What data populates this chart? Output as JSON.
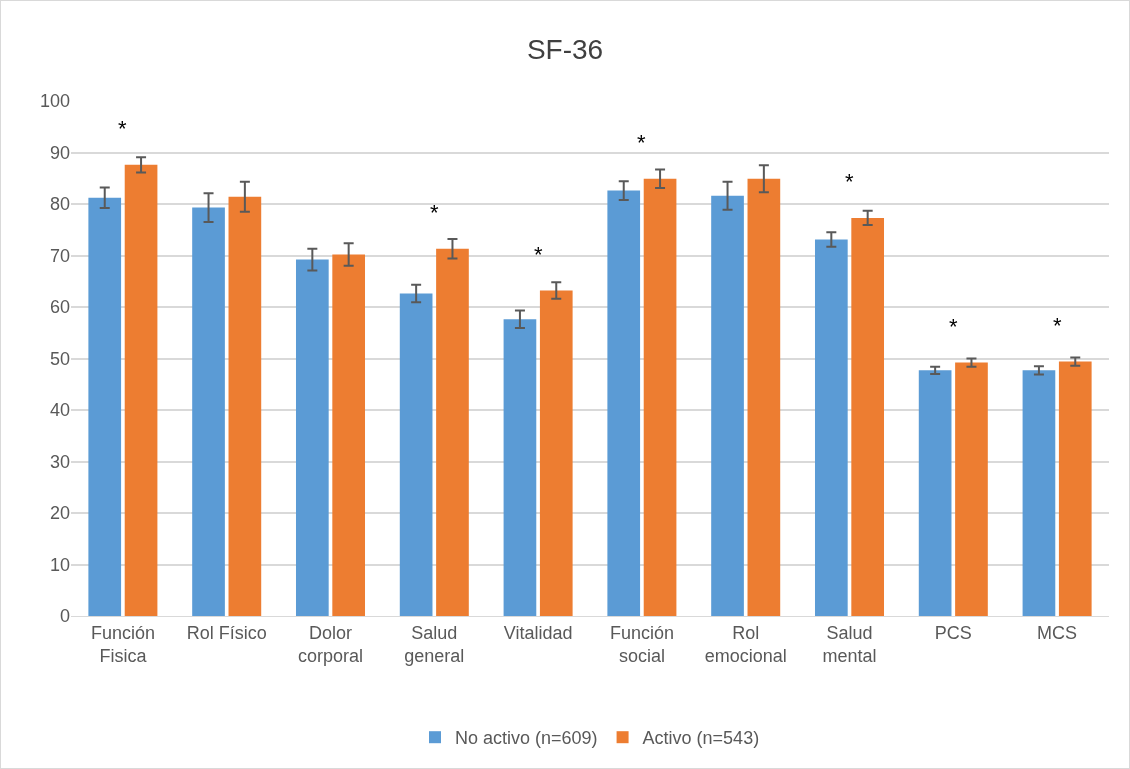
{
  "chart_data": {
    "type": "bar",
    "title": "SF-36",
    "categories": [
      "Función Fisica",
      "Rol Físico",
      "Dolor corporal",
      "Salud general",
      "Vitalidad",
      "Función social",
      "Rol emocional",
      "Salud mental",
      "PCS",
      "MCS"
    ],
    "series": [
      {
        "name": "No activo (n=609)",
        "color": "#5b9bd5",
        "values": [
          81.2,
          79.3,
          69.2,
          62.6,
          57.6,
          82.6,
          81.6,
          73.1,
          47.7,
          47.7
        ],
        "errors": [
          2.0,
          2.8,
          2.1,
          1.7,
          1.7,
          1.8,
          2.7,
          1.4,
          0.7,
          0.8
        ]
      },
      {
        "name": "Activo (n=543)",
        "color": "#ed7d31",
        "values": [
          87.6,
          81.4,
          70.2,
          71.3,
          63.2,
          84.9,
          84.9,
          77.3,
          49.2,
          49.4
        ],
        "errors": [
          1.5,
          2.9,
          2.2,
          1.9,
          1.6,
          1.8,
          2.6,
          1.4,
          0.8,
          0.8
        ]
      }
    ],
    "ylim": [
      0,
      100
    ],
    "yticks": [
      0,
      10,
      20,
      30,
      40,
      50,
      60,
      70,
      80,
      90,
      100
    ],
    "grid": "y",
    "legend": "bottom",
    "annotations": [
      {
        "text": "*",
        "x": "Función Fisica",
        "y": 87.6
      },
      {
        "text": "*",
        "x": "Salud general",
        "y": 71.3
      },
      {
        "text": "*",
        "x": "Vitalidad",
        "y": 63.2
      },
      {
        "text": "*",
        "x": "Función social",
        "y": 84.9
      },
      {
        "text": "*",
        "x": "Salud mental",
        "y": 77.3
      },
      {
        "text": "*",
        "x": "PCS",
        "y": 49.2
      },
      {
        "text": "*",
        "x": "MCS",
        "y": 49.4
      }
    ]
  }
}
